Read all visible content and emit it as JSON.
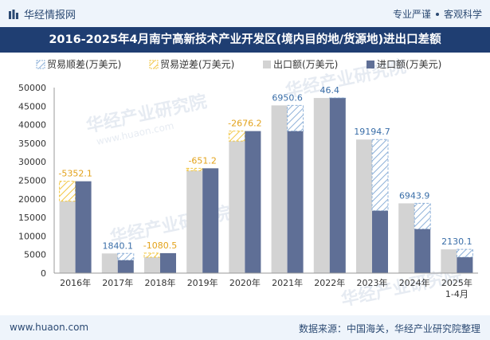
{
  "header": {
    "brand": "华经情报网",
    "tags": [
      "专业严谨",
      "客观科学"
    ]
  },
  "footer": {
    "website": "www.huaon.com",
    "source": "数据来源：中国海关，华经产业研究院整理"
  },
  "watermarks": [
    "华经产业研究院",
    "www.huaon.com"
  ],
  "colors": {
    "export": "#d3d3d3",
    "import": "#5f6f96",
    "surplus_hatch": "#8db0d8",
    "deficit_hatch": "#f2c744",
    "surplus_label": "#3a6ea8",
    "deficit_label": "#e3a21a"
  },
  "chart_data": {
    "type": "bar",
    "title": "2016-2025年4月南宁高新技术产业开发区(境内目的地/货源地)进出口差额",
    "categories": [
      "2016年",
      "2017年",
      "2018年",
      "2019年",
      "2020年",
      "2021年",
      "2022年",
      "2023年",
      "2024年",
      "2025年 1-4月"
    ],
    "ylim": [
      0,
      50000
    ],
    "yticks": [
      0,
      5000,
      10000,
      15000,
      20000,
      25000,
      30000,
      35000,
      40000,
      45000,
      50000
    ],
    "grid": false,
    "legend_position": "top-left",
    "series": [
      {
        "name": "出口额(万美元)",
        "values": [
          19400,
          5300,
          4300,
          27600,
          35600,
          45200,
          47200,
          36000,
          18800,
          6400
        ]
      },
      {
        "name": "进口额(万美元)",
        "values": [
          24752,
          3460,
          5381,
          28251,
          38276,
          38249,
          47154,
          16805,
          11856,
          4270
        ]
      }
    ],
    "balance": {
      "surplus_name": "贸易顺差(万美元)",
      "deficit_name": "贸易逆差(万美元)",
      "values": [
        -5352.1,
        1840.1,
        -1080.5,
        -651.2,
        -2676.2,
        6950.6,
        46.4,
        19194.7,
        6943.9,
        2130.1
      ],
      "labels": [
        "-5352.1",
        "1840.1",
        "-1080.5",
        "-651.2",
        "-2676.2",
        "6950.6",
        "46.4",
        "19194.7",
        "6943.9",
        "2130.1"
      ]
    }
  }
}
